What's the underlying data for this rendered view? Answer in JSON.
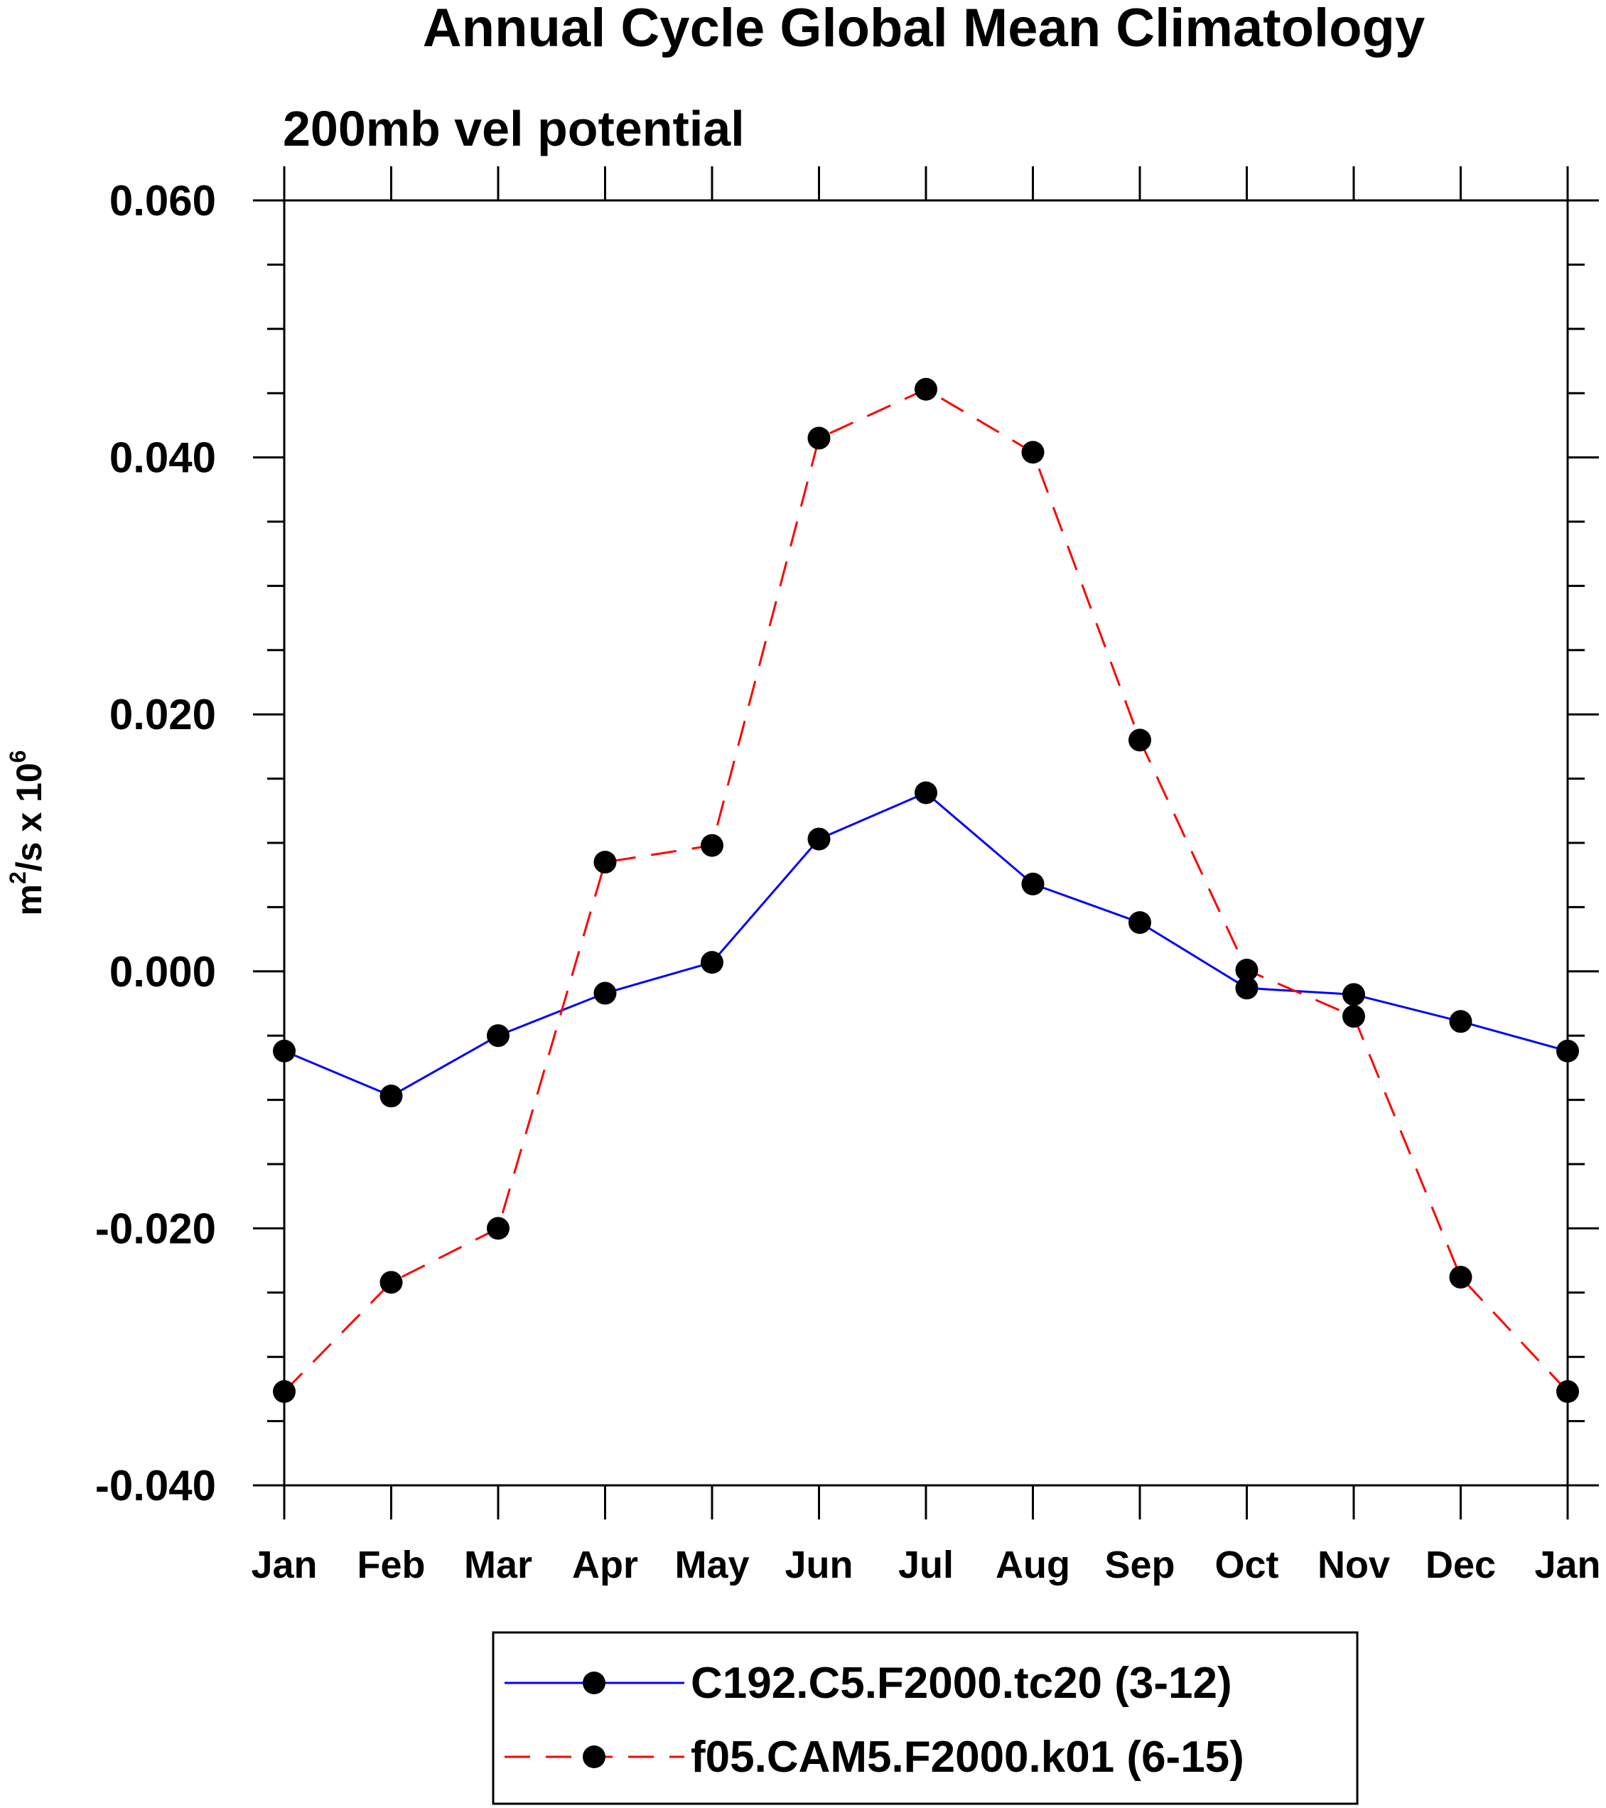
{
  "chart_data": {
    "type": "line",
    "title": "Annual Cycle Global Mean Climatology",
    "subtitle": "200mb vel potential",
    "ylabel_base": "m",
    "ylabel_exp1": "2",
    "ylabel_mid": "/s x 10",
    "ylabel_exp2": "6",
    "xlabel": "",
    "categories": [
      "Jan",
      "Feb",
      "Mar",
      "Apr",
      "May",
      "Jun",
      "Jul",
      "Aug",
      "Sep",
      "Oct",
      "Nov",
      "Dec",
      "Jan"
    ],
    "ylim": [
      -0.04,
      0.06
    ],
    "yticks": [
      -0.04,
      -0.02,
      0.0,
      0.02,
      0.04,
      0.06
    ],
    "ytick_labels": [
      "-0.040",
      "-0.020",
      "0.000",
      "0.020",
      "0.040",
      "0.060"
    ],
    "series": [
      {
        "name": "C192.C5.F2000.tc20 (3-12)",
        "color": "#0000ff",
        "dash": "solid",
        "values": [
          -0.0062,
          -0.0097,
          -0.005,
          -0.0017,
          0.0007,
          0.0103,
          0.0139,
          0.0068,
          0.0038,
          -0.0013,
          -0.0018,
          -0.0039,
          -0.0062
        ]
      },
      {
        "name": "f05.CAM5.F2000.k01 (6-15)",
        "color": "#ff0000",
        "dash": "dashed",
        "values": [
          -0.0327,
          -0.0242,
          -0.02,
          0.0085,
          0.0098,
          0.0415,
          0.0453,
          0.0404,
          0.018,
          0.0001,
          -0.0035,
          -0.0238,
          -0.0327
        ]
      }
    ],
    "marker_color": "#000000",
    "legend_position": "bottom-center",
    "grid": false
  }
}
